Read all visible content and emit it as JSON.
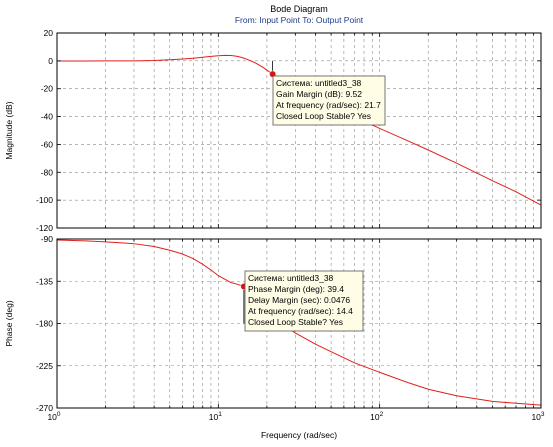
{
  "chart_data": {
    "type": "line",
    "title": "Bode Diagram",
    "subtitle": "From: Input Point  To: Output Point",
    "xlabel": "Frequency  (rad/sec)",
    "xscale": "log",
    "xlim": [
      1,
      1000
    ],
    "x_ticks": [
      {
        "value": 1,
        "base": "10",
        "exp": "0"
      },
      {
        "value": 10,
        "base": "10",
        "exp": "1"
      },
      {
        "value": 100,
        "base": "10",
        "exp": "2"
      },
      {
        "value": 1000,
        "base": "10",
        "exp": "3"
      }
    ],
    "grid": true,
    "colors": {
      "line": "#e0201c",
      "marker": "#e01010",
      "grid": "#8c8c8c",
      "axis": "#000000",
      "subtitle": "#1e3c8c",
      "tooltip_bg": "#fffde6",
      "tooltip_border": "#555555",
      "plot_bg": "#ffffff"
    },
    "panels": [
      {
        "name": "magnitude",
        "ylabel": "Magnitude (dB)",
        "ylim": [
          -120,
          20
        ],
        "yticks": [
          20,
          0,
          -20,
          -40,
          -60,
          -80,
          -100,
          -120
        ],
        "ytick_labels": [
          "20",
          "0",
          "-20",
          "-40",
          "-60",
          "-80",
          "-100",
          "-120"
        ],
        "series": {
          "x": [
            1,
            1.5,
            2,
            3,
            4,
            5,
            6,
            7,
            8,
            9,
            10,
            11,
            12,
            13,
            14,
            15,
            17,
            19,
            21.7,
            25,
            30,
            40,
            50,
            70,
            100,
            150,
            200,
            300,
            500,
            700,
            1000
          ],
          "y": [
            -0.1,
            -0.1,
            -0.05,
            0,
            0.3,
            0.8,
            1.3,
            1.9,
            2.6,
            3.2,
            3.7,
            3.9,
            3.8,
            3.3,
            2.4,
            1.2,
            -1.5,
            -4.8,
            -9.52,
            -13.5,
            -18.5,
            -26,
            -31.5,
            -40,
            -48.5,
            -57.5,
            -64,
            -73.5,
            -86,
            -94,
            -103.5
          ]
        },
        "marker": {
          "x": 21.7,
          "y": -9.52
        },
        "drop_line": {
          "x": 21.7,
          "y_from": 0,
          "y_to": -9.52
        },
        "tooltip_lines": [
          "Система: untitled3_38",
          "Gain Margin (dB): 9.52",
          "At frequency (rad/sec): 21.7",
          "Closed Loop Stable? Yes"
        ]
      },
      {
        "name": "phase",
        "ylabel": "Phase (deg)",
        "ylim": [
          -270,
          -90
        ],
        "yticks": [
          -90,
          -135,
          -180,
          -225,
          -270
        ],
        "ytick_labels": [
          "-90",
          "-135",
          "-180",
          "-225",
          "-270"
        ],
        "series": {
          "x": [
            1,
            1.5,
            2,
            3,
            4,
            5,
            6,
            7,
            8,
            9,
            10,
            11,
            12,
            13,
            14.4,
            16,
            18,
            20,
            25,
            30,
            40,
            50,
            70,
            100,
            150,
            200,
            300,
            500,
            700,
            1000
          ],
          "y": [
            -91,
            -92,
            -93,
            -95,
            -98,
            -102,
            -106,
            -111,
            -117,
            -123,
            -129,
            -133,
            -136.5,
            -138,
            -140.6,
            -155,
            -163,
            -171,
            -181,
            -190,
            -202,
            -210,
            -222,
            -232,
            -243,
            -250,
            -257,
            -263,
            -265,
            -267
          ]
        },
        "marker": {
          "x": 14.4,
          "y": -140.6
        },
        "drop_line": {
          "x": 14.4,
          "y_from": -140.6,
          "y_to": -180
        },
        "tooltip_lines": [
          "Система: untitled3_38",
          "Phase Margin (deg): 39.4",
          "Delay Margin (sec): 0.0476",
          "At frequency (rad/sec): 14.4",
          "Closed Loop Stable? Yes"
        ]
      }
    ]
  }
}
